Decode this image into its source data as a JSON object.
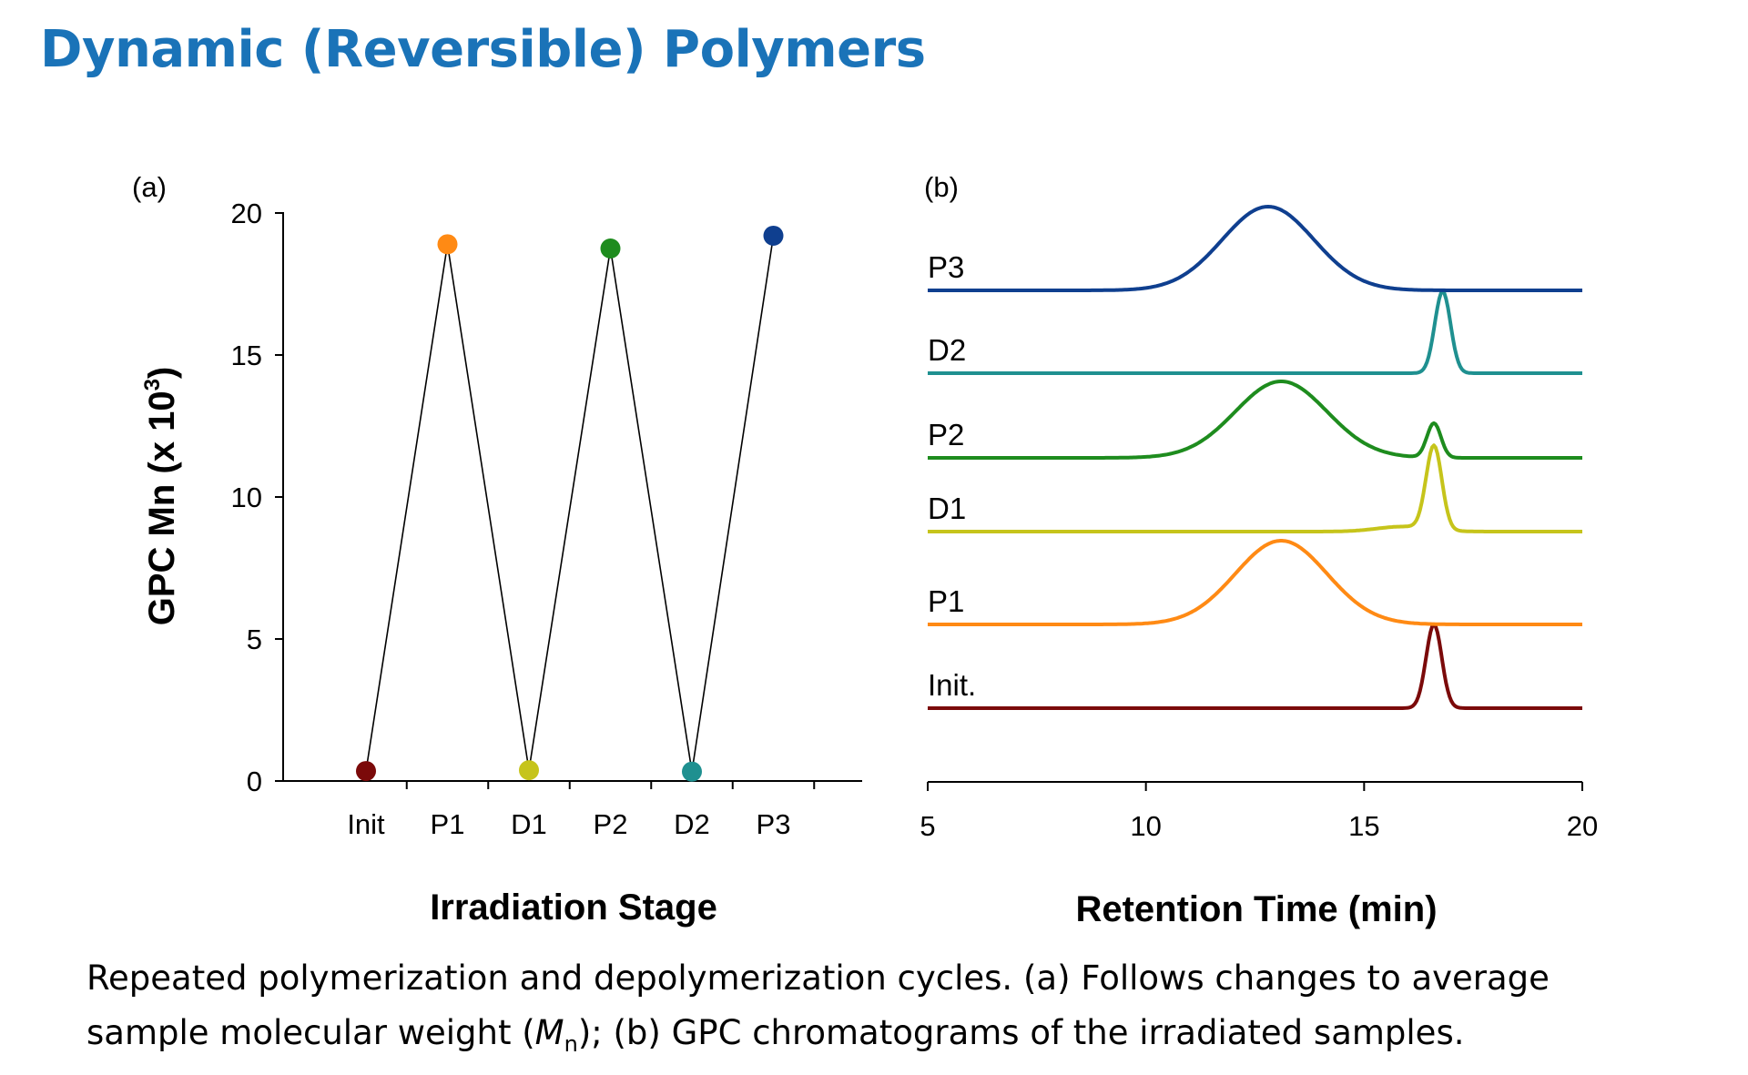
{
  "title": "Dynamic (Reversible) Polymers",
  "colors": {
    "title": "#1a73b8",
    "Init": "#7b0a0a",
    "P1": "#ff8a14",
    "D1": "#c6c41b",
    "P2": "#1e8c1e",
    "D2": "#1f9090",
    "P3": "#0f3f8f"
  },
  "chart_data": [
    {
      "type": "line",
      "panel_label": "(a)",
      "title": "",
      "xlabel": "Irradiation Stage",
      "ylabel_main": "GPC Mn (x 10",
      "ylabel_sup": "3",
      "ylabel_end": ")",
      "categories": [
        "Init",
        "P1",
        "D1",
        "P2",
        "D2",
        "P3"
      ],
      "values": [
        0.35,
        18.9,
        0.38,
        18.75,
        0.33,
        19.2
      ],
      "ylim": [
        0,
        20
      ],
      "yticks": [
        0,
        5,
        10,
        15,
        20
      ]
    },
    {
      "type": "line",
      "panel_label": "(b)",
      "xlabel": "Retention Time (min)",
      "xlim": [
        5,
        20
      ],
      "xticks": [
        5,
        10,
        15,
        20
      ],
      "series": [
        {
          "name": "Init.",
          "key": "Init",
          "peaks": [
            {
              "center": 16.6,
              "height": 1.0,
              "width": 0.18
            }
          ]
        },
        {
          "name": "P1",
          "key": "P1",
          "peaks": [
            {
              "center": 13.1,
              "height": 1.0,
              "width": 1.05
            }
          ]
        },
        {
          "name": "D1",
          "key": "D1",
          "peaks": [
            {
              "center": 16.6,
              "height": 1.0,
              "width": 0.18
            },
            {
              "center": 15.9,
              "height": 0.06,
              "width": 0.6
            }
          ]
        },
        {
          "name": "P2",
          "key": "P2",
          "peaks": [
            {
              "center": 13.1,
              "height": 1.0,
              "width": 1.05
            },
            {
              "center": 16.6,
              "height": 0.45,
              "width": 0.16
            }
          ]
        },
        {
          "name": "D2",
          "key": "D2",
          "peaks": [
            {
              "center": 16.8,
              "height": 1.0,
              "width": 0.18
            }
          ]
        },
        {
          "name": "P3",
          "key": "P3",
          "peaks": [
            {
              "center": 12.8,
              "height": 1.0,
              "width": 1.05
            }
          ]
        }
      ]
    }
  ],
  "caption": {
    "line1": "Repeated polymerization and depolymerization cycles.  (a) Follows changes to average",
    "line2_pre": "sample molecular weight (",
    "line2_italic": "M",
    "line2_sub": "n",
    "line2_post": "); (b)  GPC chromatograms of the irradiated samples."
  }
}
